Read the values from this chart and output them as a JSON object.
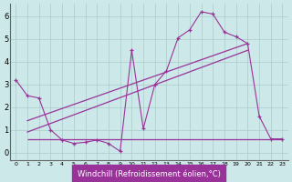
{
  "xlabel": "Windchill (Refroidissement éolien,°C)",
  "background_color": "#cce8e8",
  "line_color": "#993399",
  "line1_pts": [
    [
      0,
      3.2
    ],
    [
      1,
      2.5
    ],
    [
      2,
      2.4
    ],
    [
      3,
      1.0
    ],
    [
      4,
      0.55
    ],
    [
      5,
      0.4
    ],
    [
      6,
      0.45
    ],
    [
      7,
      0.55
    ],
    [
      8,
      0.4
    ],
    [
      9,
      0.05
    ],
    [
      10,
      4.5
    ],
    [
      11,
      1.05
    ],
    [
      12,
      3.0
    ],
    [
      13,
      3.6
    ],
    [
      14,
      5.05
    ],
    [
      15,
      5.4
    ],
    [
      16,
      6.2
    ],
    [
      17,
      6.1
    ],
    [
      18,
      5.3
    ],
    [
      19,
      5.1
    ],
    [
      20,
      4.8
    ],
    [
      21,
      1.6
    ],
    [
      22,
      0.6
    ],
    [
      23,
      0.6
    ]
  ],
  "trend1_x": [
    1,
    20
  ],
  "trend1_y": [
    1.4,
    4.8
  ],
  "trend2_x": [
    1,
    20
  ],
  "trend2_y": [
    0.9,
    4.5
  ],
  "flat_y": 0.6,
  "flat_x_start": 1,
  "flat_x_end": 23,
  "ylim": [
    -0.35,
    6.55
  ],
  "xlim": [
    -0.5,
    23.5
  ],
  "yticks": [
    0,
    1,
    2,
    3,
    4,
    5,
    6
  ],
  "xticks": [
    0,
    1,
    2,
    3,
    4,
    5,
    6,
    7,
    8,
    9,
    10,
    11,
    12,
    13,
    14,
    15,
    16,
    17,
    18,
    19,
    20,
    21,
    22,
    23
  ],
  "grid_color": "#aacccc",
  "label_bg_color": "#993399",
  "label_fg_color": "#ffffff",
  "xlabel_fontsize": 6,
  "tick_fontsize_x": 4.5,
  "tick_fontsize_y": 6
}
